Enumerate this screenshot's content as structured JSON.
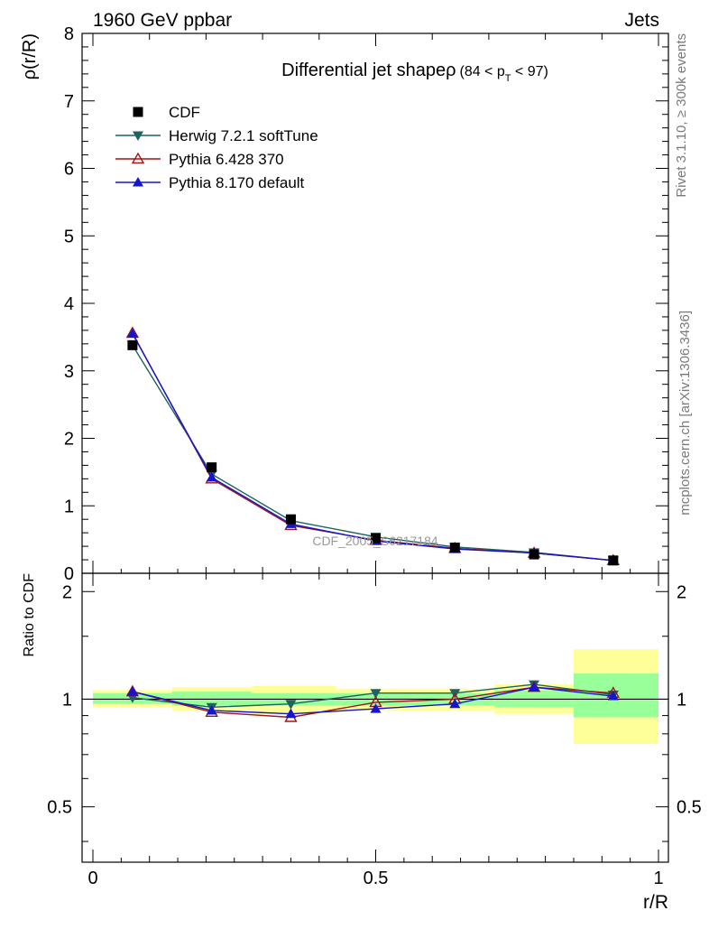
{
  "header": {
    "left": "1960 GeV ppbar",
    "right": "Jets"
  },
  "side_labels": {
    "rivet": "Rivet 3.1.10, ≥ 300k events",
    "mcplots": "mcplots.cern.ch [arXiv:1306.3436]"
  },
  "watermark": "CDF_2005_S6217184",
  "chart_data": [
    {
      "type": "line",
      "title": "Differential jet shapeρ",
      "title_range": "(84 < p",
      "title_sub": "T",
      "title_end": " < 97)",
      "xlabel": "r/R",
      "ylabel": "ρ(r/R)",
      "xlim": [
        0,
        1
      ],
      "ylim": [
        0,
        8
      ],
      "yticks": [
        "0",
        "1",
        "2",
        "3",
        "4",
        "5",
        "6",
        "7",
        "8"
      ],
      "x": [
        0.07,
        0.21,
        0.35,
        0.5,
        0.64,
        0.78,
        0.92
      ],
      "series": [
        {
          "name": "CDF",
          "color": "#000000",
          "marker": "square",
          "values": [
            3.38,
            1.57,
            0.8,
            0.52,
            0.38,
            0.28,
            0.19
          ]
        },
        {
          "name": "Herwig 7.2.1 softTune",
          "color": "#1d6460",
          "marker": "triangle-down",
          "values": [
            3.38,
            1.47,
            0.78,
            0.54,
            0.39,
            0.31,
            0.19
          ]
        },
        {
          "name": "Pythia 6.428 370",
          "color": "#a01515",
          "marker": "triangle-up-open",
          "values": [
            3.56,
            1.4,
            0.71,
            0.49,
            0.37,
            0.3,
            0.19
          ]
        },
        {
          "name": "Pythia 8.170 default",
          "color": "#1515d0",
          "marker": "triangle-up",
          "values": [
            3.55,
            1.42,
            0.73,
            0.48,
            0.36,
            0.3,
            0.19
          ]
        }
      ],
      "legend_position": "top-left"
    },
    {
      "type": "line",
      "ylabel": "Ratio to CDF",
      "xlabel": "r/R",
      "xlim": [
        0,
        1
      ],
      "ylim": [
        0.35,
        2.25
      ],
      "ytick_values": [
        0.5,
        1,
        2
      ],
      "yticks": [
        "0.5",
        "1",
        "2"
      ],
      "xtick_values": [
        0,
        0.5,
        1
      ],
      "xticks": [
        "0",
        "0.5",
        "1"
      ],
      "x": [
        0.07,
        0.21,
        0.35,
        0.5,
        0.64,
        0.78,
        0.92
      ],
      "bands": [
        {
          "x0": 0.0,
          "x1": 0.14,
          "yellow": [
            0.95,
            1.06
          ],
          "green": [
            0.97,
            1.04
          ]
        },
        {
          "x0": 0.14,
          "x1": 0.28,
          "yellow": [
            0.93,
            1.08
          ],
          "green": [
            0.96,
            1.05
          ]
        },
        {
          "x0": 0.28,
          "x1": 0.43,
          "yellow": [
            0.91,
            1.09
          ],
          "green": [
            0.96,
            1.04
          ]
        },
        {
          "x0": 0.43,
          "x1": 0.57,
          "yellow": [
            0.93,
            1.07
          ],
          "green": [
            0.96,
            1.04
          ]
        },
        {
          "x0": 0.57,
          "x1": 0.71,
          "yellow": [
            0.93,
            1.07
          ],
          "green": [
            0.96,
            1.04
          ]
        },
        {
          "x0": 0.71,
          "x1": 0.85,
          "yellow": [
            0.91,
            1.1
          ],
          "green": [
            0.95,
            1.06
          ]
        },
        {
          "x0": 0.85,
          "x1": 1.0,
          "yellow": [
            0.75,
            1.38
          ],
          "green": [
            0.89,
            1.18
          ]
        }
      ],
      "series": [
        {
          "name": "Herwig 7.2.1 softTune",
          "color": "#1d6460",
          "marker": "triangle-down",
          "values": [
            1.01,
            0.95,
            0.97,
            1.04,
            1.04,
            1.1,
            1.03
          ]
        },
        {
          "name": "Pythia 6.428 370",
          "color": "#a01515",
          "marker": "triangle-up-open",
          "values": [
            1.05,
            0.92,
            0.89,
            0.98,
            1.0,
            1.08,
            1.04
          ]
        },
        {
          "name": "Pythia 8.170 default",
          "color": "#1515d0",
          "marker": "triangle-up",
          "values": [
            1.05,
            0.93,
            0.91,
            0.94,
            0.97,
            1.08,
            1.02
          ]
        }
      ]
    }
  ]
}
